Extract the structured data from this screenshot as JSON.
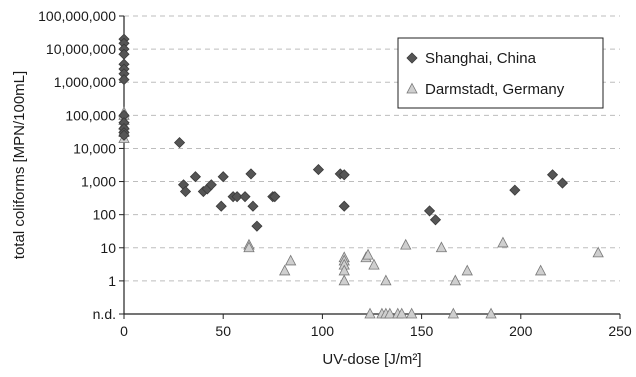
{
  "chart_data": {
    "type": "scatter",
    "title": "",
    "xlabel": "UV-dose [J/m²]",
    "ylabel": "total coliforms [MPN/100mL]",
    "xlim": [
      0,
      250
    ],
    "y_scale": "log",
    "grid": "horizontal-dashed",
    "legend_position": "top-right",
    "x_ticks": [
      "0",
      "50",
      "100",
      "150",
      "200",
      "250"
    ],
    "y_ticks": [
      "n.d.",
      "1",
      "10",
      "100",
      "1,000",
      "10,000",
      "100,000",
      "1,000,000",
      "10,000,000",
      "100,000,000"
    ],
    "nd_label": "n.d.",
    "series": [
      {
        "name": "Shanghai, China",
        "marker": "diamond",
        "color": "#555555",
        "points": [
          [
            0,
            20000000
          ],
          [
            0,
            15000000
          ],
          [
            0,
            10000000
          ],
          [
            0,
            7000000
          ],
          [
            0,
            3500000
          ],
          [
            0,
            2500000
          ],
          [
            0,
            1800000
          ],
          [
            0,
            1200000
          ],
          [
            0,
            100000
          ],
          [
            0,
            60000
          ],
          [
            0,
            40000
          ],
          [
            0,
            30000
          ],
          [
            0,
            25000
          ],
          [
            28,
            15000
          ],
          [
            30,
            800
          ],
          [
            31,
            500
          ],
          [
            36,
            1400
          ],
          [
            40,
            500
          ],
          [
            42,
            600
          ],
          [
            44,
            800
          ],
          [
            49,
            180
          ],
          [
            50,
            1400
          ],
          [
            55,
            350
          ],
          [
            57,
            350
          ],
          [
            61,
            350
          ],
          [
            64,
            1700
          ],
          [
            65,
            180
          ],
          [
            67,
            45
          ],
          [
            75,
            350
          ],
          [
            76,
            350
          ],
          [
            98,
            2300
          ],
          [
            109,
            1700
          ],
          [
            111,
            1600
          ],
          [
            111,
            180
          ],
          [
            154,
            130
          ],
          [
            157,
            70
          ],
          [
            197,
            550
          ],
          [
            216,
            1600
          ],
          [
            221,
            900
          ]
        ]
      },
      {
        "name": "Darmstadt, Germany",
        "marker": "triangle",
        "color": "#cfcfcf",
        "points": [
          [
            0,
            120000
          ],
          [
            0,
            100000
          ],
          [
            0,
            70000
          ],
          [
            0,
            50000
          ],
          [
            0,
            40000
          ],
          [
            0,
            30000
          ],
          [
            0,
            20000
          ],
          [
            63,
            12
          ],
          [
            63,
            10
          ],
          [
            81,
            2
          ],
          [
            84,
            4
          ],
          [
            111,
            5
          ],
          [
            111,
            4
          ],
          [
            111,
            3
          ],
          [
            111,
            2
          ],
          [
            111,
            1
          ],
          [
            122,
            5
          ],
          [
            123,
            6
          ],
          [
            126,
            3
          ],
          [
            132,
            1
          ],
          [
            142,
            12
          ],
          [
            160,
            10
          ],
          [
            167,
            1
          ],
          [
            173,
            2
          ],
          [
            191,
            14
          ],
          [
            210,
            2
          ],
          [
            239,
            7
          ],
          [
            124,
            "n.d."
          ],
          [
            130,
            "n.d."
          ],
          [
            132,
            "n.d."
          ],
          [
            134,
            "n.d."
          ],
          [
            138,
            "n.d."
          ],
          [
            140,
            "n.d."
          ],
          [
            145,
            "n.d."
          ],
          [
            166,
            "n.d."
          ],
          [
            185,
            "n.d."
          ]
        ]
      }
    ]
  }
}
